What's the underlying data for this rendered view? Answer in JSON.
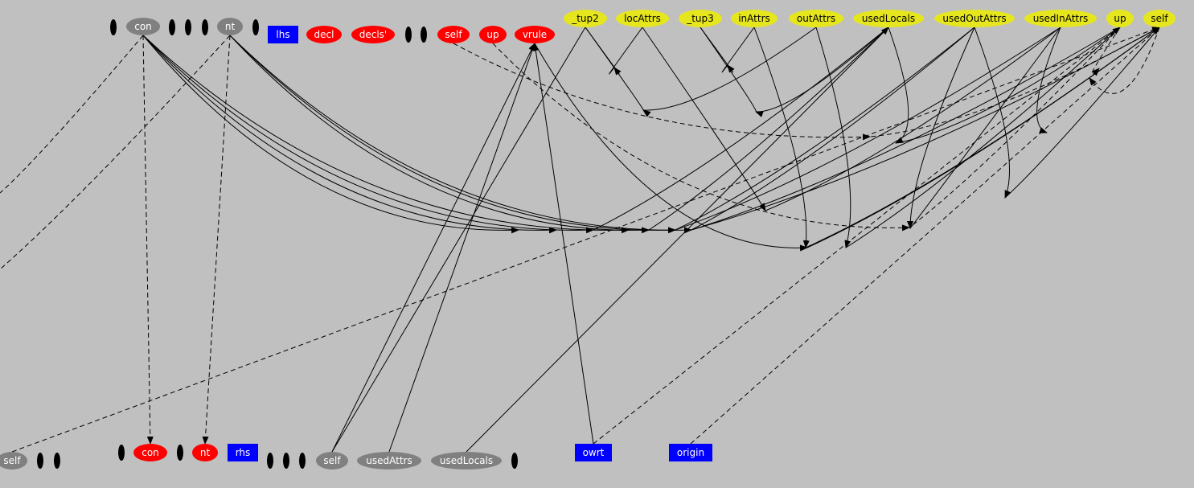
{
  "colors": {
    "background": "#c0c0c0",
    "gray_node": "#808080",
    "red_node": "#ff0000",
    "yellow_node": "#e6e61e",
    "blue_node": "#0000ff",
    "black_node": "#000000",
    "edge": "#000000"
  },
  "nodes": [
    {
      "id": "d1",
      "label": "",
      "style": "black"
    },
    {
      "id": "con_top",
      "label": "con",
      "style": "gray"
    },
    {
      "id": "d2",
      "label": "",
      "style": "black"
    },
    {
      "id": "d3",
      "label": "",
      "style": "black"
    },
    {
      "id": "d4",
      "label": "",
      "style": "black"
    },
    {
      "id": "nt_top",
      "label": "nt",
      "style": "gray"
    },
    {
      "id": "d5",
      "label": "",
      "style": "black"
    },
    {
      "id": "lhs",
      "label": "lhs",
      "style": "blue"
    },
    {
      "id": "decl",
      "label": "decl",
      "style": "red"
    },
    {
      "id": "decls2",
      "label": "decls'",
      "style": "red"
    },
    {
      "id": "d6",
      "label": "",
      "style": "black"
    },
    {
      "id": "d7",
      "label": "",
      "style": "black"
    },
    {
      "id": "self_red",
      "label": "self",
      "style": "red"
    },
    {
      "id": "up_red",
      "label": "up",
      "style": "red"
    },
    {
      "id": "vrule",
      "label": "vrule",
      "style": "red"
    },
    {
      "id": "tup2",
      "label": "_tup2",
      "style": "yellow"
    },
    {
      "id": "locAttrs",
      "label": "locAttrs",
      "style": "yellow"
    },
    {
      "id": "tup3",
      "label": "_tup3",
      "style": "yellow"
    },
    {
      "id": "inAttrs",
      "label": "inAttrs",
      "style": "yellow"
    },
    {
      "id": "outAttrs",
      "label": "outAttrs",
      "style": "yellow"
    },
    {
      "id": "usedLocals_y",
      "label": "usedLocals",
      "style": "yellow"
    },
    {
      "id": "usedOutAttrs",
      "label": "usedOutAttrs",
      "style": "yellow"
    },
    {
      "id": "usedInAttrs",
      "label": "usedInAttrs",
      "style": "yellow"
    },
    {
      "id": "up_y",
      "label": "up",
      "style": "yellow"
    },
    {
      "id": "self_y",
      "label": "self",
      "style": "yellow"
    },
    {
      "id": "self_bl",
      "label": "self",
      "style": "gray"
    },
    {
      "id": "b1",
      "label": "",
      "style": "black"
    },
    {
      "id": "b2",
      "label": "",
      "style": "black"
    },
    {
      "id": "b3",
      "label": "",
      "style": "black"
    },
    {
      "id": "con_bot",
      "label": "con",
      "style": "red"
    },
    {
      "id": "b4",
      "label": "",
      "style": "black"
    },
    {
      "id": "nt_bot",
      "label": "nt",
      "style": "red"
    },
    {
      "id": "rhs",
      "label": "rhs",
      "style": "blue"
    },
    {
      "id": "b5",
      "label": "",
      "style": "black"
    },
    {
      "id": "b6",
      "label": "",
      "style": "black"
    },
    {
      "id": "b7",
      "label": "",
      "style": "black"
    },
    {
      "id": "self_bm",
      "label": "self",
      "style": "gray"
    },
    {
      "id": "usedAttrs",
      "label": "usedAttrs",
      "style": "gray"
    },
    {
      "id": "usedLocals_g",
      "label": "usedLocals",
      "style": "gray"
    },
    {
      "id": "b8",
      "label": "",
      "style": "black"
    },
    {
      "id": "owrt",
      "label": "owrt",
      "style": "blue"
    },
    {
      "id": "origin",
      "label": "origin",
      "style": "blue"
    }
  ],
  "edges": [
    {
      "from": "con_top",
      "to": "con_bot",
      "dashed": true,
      "arrow": true
    },
    {
      "from": "nt_top",
      "to": "nt_bot",
      "dashed": true,
      "arrow": true
    },
    {
      "from": "con_top",
      "to": "w1",
      "dashed": true,
      "arrow": false
    },
    {
      "from": "nt_top",
      "to": "w2",
      "dashed": true,
      "arrow": false
    },
    {
      "from": "con_top",
      "to": "h1",
      "dashed": false,
      "arrow": true
    },
    {
      "from": "con_top",
      "to": "h2",
      "dashed": false,
      "arrow": true
    },
    {
      "from": "con_top",
      "to": "h3",
      "dashed": false,
      "arrow": true
    },
    {
      "from": "con_top",
      "to": "h4",
      "dashed": false,
      "arrow": true
    },
    {
      "from": "nt_top",
      "to": "h5",
      "dashed": false,
      "arrow": true
    },
    {
      "from": "nt_top",
      "to": "h6",
      "dashed": false,
      "arrow": true
    },
    {
      "from": "nt_top",
      "to": "h7",
      "dashed": false,
      "arrow": true
    },
    {
      "from": "usedLocals_y",
      "to": "h3",
      "dashed": false,
      "arrow": false
    },
    {
      "from": "usedLocals_y",
      "to": "h5",
      "dashed": false,
      "arrow": false
    },
    {
      "from": "usedOutAttrs",
      "to": "h6",
      "dashed": false,
      "arrow": false
    },
    {
      "from": "usedOutAttrs",
      "to": "h7",
      "dashed": false,
      "arrow": false
    },
    {
      "from": "usedInAttrs",
      "to": "h6",
      "dashed": false,
      "arrow": false
    },
    {
      "from": "up_y",
      "to": "h7",
      "dashed": false,
      "arrow": false
    },
    {
      "from": "self_y",
      "to": "h7",
      "dashed": false,
      "arrow": false
    },
    {
      "from": "tup2",
      "to": "k1",
      "dashed": false,
      "arrow": true
    },
    {
      "from": "locAttrs",
      "to": "k1",
      "dashed": false,
      "arrow": false
    },
    {
      "from": "tup2",
      "to": "k2",
      "dashed": false,
      "arrow": true
    },
    {
      "from": "outAttrs",
      "to": "k2",
      "dashed": false,
      "arrow": false
    },
    {
      "from": "tup3",
      "to": "k3",
      "dashed": false,
      "arrow": true
    },
    {
      "from": "inAttrs",
      "to": "k3",
      "dashed": false,
      "arrow": false
    },
    {
      "from": "tup3",
      "to": "k4",
      "dashed": false,
      "arrow": true
    },
    {
      "from": "usedLocals_y",
      "to": "k4",
      "dashed": false,
      "arrow": false
    },
    {
      "from": "locAttrs",
      "to": "k5",
      "dashed": false,
      "arrow": true
    },
    {
      "from": "usedInAttrs",
      "to": "k5",
      "dashed": false,
      "arrow": false
    },
    {
      "from": "inAttrs",
      "to": "k6",
      "dashed": false,
      "arrow": true
    },
    {
      "from": "self_y",
      "to": "k6",
      "dashed": false,
      "arrow": false
    },
    {
      "from": "outAttrs",
      "to": "k7",
      "dashed": false,
      "arrow": true
    },
    {
      "from": "up_y",
      "to": "k7",
      "dashed": false,
      "arrow": false
    },
    {
      "from": "usedLocals_y",
      "to": "k8",
      "dashed": false,
      "arrow": true
    },
    {
      "from": "up_y",
      "to": "k8",
      "dashed": false,
      "arrow": false
    },
    {
      "from": "usedOutAttrs",
      "to": "k9",
      "dashed": false,
      "arrow": true
    },
    {
      "from": "usedInAttrs",
      "to": "k9",
      "dashed": false,
      "arrow": false
    },
    {
      "from": "usedOutAttrs",
      "to": "k10",
      "dashed": false,
      "arrow": true
    },
    {
      "from": "self_y",
      "to": "k10",
      "dashed": false,
      "arrow": false
    },
    {
      "from": "vrule",
      "to": "k11",
      "dashed": false,
      "arrow": true
    },
    {
      "from": "self_y",
      "to": "k11",
      "dashed": false,
      "arrow": false
    },
    {
      "from": "usedInAttrs",
      "to": "k12",
      "dashed": false,
      "arrow": true
    },
    {
      "from": "self_bm",
      "to": "vrule",
      "dashed": false,
      "arrow": true
    },
    {
      "from": "usedAttrs",
      "to": "vrule",
      "dashed": false,
      "arrow": true
    },
    {
      "from": "owrt",
      "to": "vrule",
      "dashed": false,
      "arrow": true
    },
    {
      "from": "self_bm",
      "to": "tup2",
      "dashed": false,
      "arrow": false
    },
    {
      "from": "usedLocals_g",
      "to": "usedLocals_y",
      "dashed": false,
      "arrow": true
    },
    {
      "from": "self_red",
      "to": "k13",
      "dashed": true,
      "arrow": true
    },
    {
      "from": "self_y",
      "to": "k13",
      "dashed": true,
      "arrow": false
    },
    {
      "from": "up_red",
      "to": "k14",
      "dashed": true,
      "arrow": true
    },
    {
      "from": "up_y",
      "to": "k14",
      "dashed": true,
      "arrow": false
    },
    {
      "from": "self_bl",
      "to": "self_y",
      "dashed": true,
      "arrow": true
    },
    {
      "from": "owrt",
      "to": "up_y",
      "dashed": true,
      "arrow": true
    },
    {
      "from": "origin",
      "to": "self_y",
      "dashed": true,
      "arrow": true
    },
    {
      "from": "self_y",
      "to": "k15",
      "dashed": true,
      "arrow": true
    },
    {
      "from": "up_y",
      "to": "k16",
      "dashed": true,
      "arrow": true
    }
  ]
}
